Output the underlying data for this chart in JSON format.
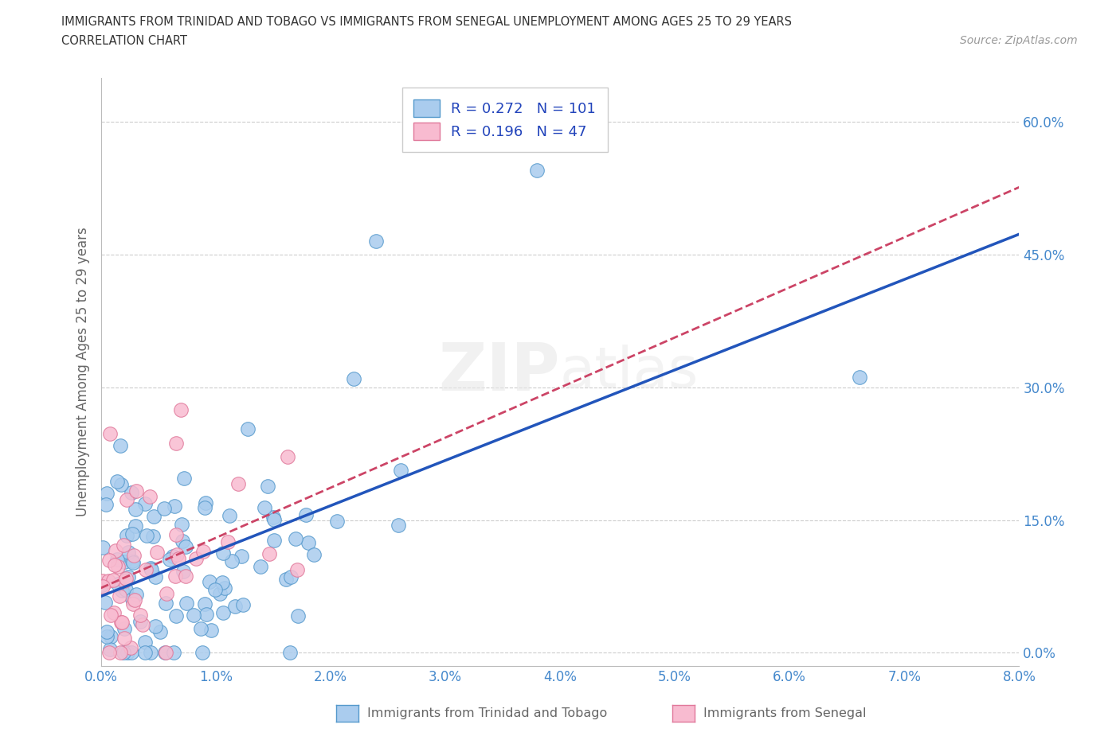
{
  "title_line1": "IMMIGRANTS FROM TRINIDAD AND TOBAGO VS IMMIGRANTS FROM SENEGAL UNEMPLOYMENT AMONG AGES 25 TO 29 YEARS",
  "title_line2": "CORRELATION CHART",
  "source_text": "Source: ZipAtlas.com",
  "ylabel": "Unemployment Among Ages 25 to 29 years",
  "xlim": [
    0.0,
    0.08
  ],
  "ylim": [
    -0.015,
    0.65
  ],
  "xticks": [
    0.0,
    0.01,
    0.02,
    0.03,
    0.04,
    0.05,
    0.06,
    0.07,
    0.08
  ],
  "xticklabels": [
    "0.0%",
    "1.0%",
    "2.0%",
    "3.0%",
    "4.0%",
    "5.0%",
    "6.0%",
    "7.0%",
    "8.0%"
  ],
  "yticks": [
    0.0,
    0.15,
    0.3,
    0.45,
    0.6
  ],
  "yticklabels": [
    "0.0%",
    "15.0%",
    "30.0%",
    "45.0%",
    "60.0%"
  ],
  "tt_color": "#aaccee",
  "tt_edge_color": "#5599cc",
  "sn_color": "#f8bbd0",
  "sn_edge_color": "#e0789a",
  "tt_line_color": "#2255bb",
  "sn_line_color": "#cc4466",
  "legend_R_tt": "R = 0.272",
  "legend_N_tt": "N = 101",
  "legend_R_sn": "R = 0.196",
  "legend_N_sn": "N = 47",
  "watermark_top": "ZIP",
  "watermark_bot": "atlas",
  "tt_R": 0.272,
  "tt_N": 101,
  "sn_R": 0.196,
  "sn_N": 47,
  "background_color": "#ffffff",
  "grid_color": "#cccccc",
  "tick_label_color": "#4488cc",
  "title_color": "#333333",
  "source_color": "#999999",
  "ylabel_color": "#666666",
  "legend_text_color": "#2244bb",
  "bottom_label_color": "#666666"
}
